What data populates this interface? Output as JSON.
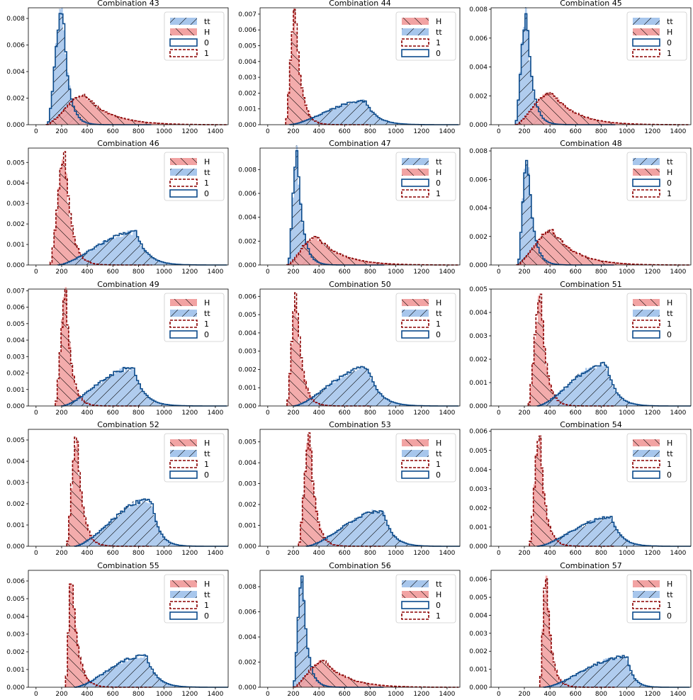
{
  "figure": {
    "colors": {
      "blue_fill": "#a7c6ec",
      "red_fill": "#f2a3a3",
      "blue_line": "#0b4a8b",
      "red_line": "#8b0000"
    }
  },
  "chart_data": [
    {
      "type": "histogram",
      "title": "Combination 43",
      "ylim": [
        0,
        0.0088
      ],
      "yticks": [
        "0.000",
        "0.002",
        "0.004",
        "0.006",
        "0.008"
      ],
      "ytick_values": [
        0,
        0.002,
        0.004,
        0.006,
        0.008
      ],
      "xticks": [
        "0",
        "200",
        "400",
        "600",
        "800",
        "1000",
        "1200",
        "1400"
      ],
      "xlim": [
        -60,
        1500
      ],
      "legend": {
        "fill_labels": [
          "tt",
          "H"
        ],
        "step_labels": [
          "0",
          "1"
        ],
        "placement": "upper right"
      },
      "series": [
        {
          "color": "blue",
          "peak_x": 210,
          "peak_y": 0.0087,
          "start_x": 90,
          "end_x": 900,
          "tail": 0.5
        },
        {
          "color": "red",
          "peak_x": 380,
          "peak_y": 0.0022,
          "start_x": 80,
          "end_x": 1480,
          "tail": 1.6
        }
      ]
    },
    {
      "type": "histogram",
      "title": "Combination 44",
      "ylim": [
        0,
        0.0074
      ],
      "yticks": [
        "0.000",
        "0.001",
        "0.002",
        "0.003",
        "0.004",
        "0.005",
        "0.006",
        "0.007"
      ],
      "ytick_values": [
        0,
        0.001,
        0.002,
        0.003,
        0.004,
        0.005,
        0.006,
        0.007
      ],
      "xticks": [
        "0",
        "200",
        "400",
        "600",
        "800",
        "1000",
        "1200",
        "1400"
      ],
      "xlim": [
        -60,
        1500
      ],
      "legend": {
        "fill_labels": [
          "H",
          "tt"
        ],
        "step_labels": [
          "1",
          "0"
        ],
        "placement": "upper right"
      },
      "series": [
        {
          "color": "red",
          "peak_x": 215,
          "peak_y": 0.0072,
          "start_x": 140,
          "end_x": 800,
          "tail": 0.6
        },
        {
          "color": "blue",
          "peak_x": 760,
          "peak_y": 0.0015,
          "start_x": 170,
          "end_x": 1490,
          "tail": 1.0
        }
      ]
    },
    {
      "type": "histogram",
      "title": "Combination 45",
      "ylim": [
        0,
        0.0081
      ],
      "yticks": [
        "0.000",
        "0.002",
        "0.004",
        "0.006",
        "0.008"
      ],
      "ytick_values": [
        0,
        0.002,
        0.004,
        0.006,
        0.008
      ],
      "xticks": [
        "0",
        "200",
        "400",
        "600",
        "800",
        "1000",
        "1200",
        "1400"
      ],
      "xlim": [
        -60,
        1500
      ],
      "legend": {
        "fill_labels": [
          "tt",
          "H"
        ],
        "step_labels": [
          "0",
          "1"
        ],
        "placement": "upper right"
      },
      "series": [
        {
          "color": "blue",
          "peak_x": 220,
          "peak_y": 0.0077,
          "start_x": 130,
          "end_x": 900,
          "tail": 0.5
        },
        {
          "color": "red",
          "peak_x": 420,
          "peak_y": 0.0022,
          "start_x": 130,
          "end_x": 1480,
          "tail": 1.5
        }
      ]
    },
    {
      "type": "histogram",
      "title": "Combination 46",
      "ylim": [
        0,
        0.0057
      ],
      "yticks": [
        "0.000",
        "0.001",
        "0.002",
        "0.003",
        "0.004",
        "0.005"
      ],
      "ytick_values": [
        0,
        0.001,
        0.002,
        0.003,
        0.004,
        0.005
      ],
      "xticks": [
        "0",
        "200",
        "400",
        "600",
        "800",
        "1000",
        "1200",
        "1400"
      ],
      "xlim": [
        -60,
        1500
      ],
      "legend": {
        "fill_labels": [
          "H",
          "tt"
        ],
        "step_labels": [
          "1",
          "0"
        ],
        "placement": "upper right"
      },
      "series": [
        {
          "color": "red",
          "peak_x": 225,
          "peak_y": 0.0054,
          "start_x": 110,
          "end_x": 900,
          "tail": 0.6
        },
        {
          "color": "blue",
          "peak_x": 780,
          "peak_y": 0.0016,
          "start_x": 170,
          "end_x": 1490,
          "tail": 1.0
        }
      ]
    },
    {
      "type": "histogram",
      "title": "Combination 47",
      "ylim": [
        0,
        0.0098
      ],
      "yticks": [
        "0.000",
        "0.002",
        "0.004",
        "0.006",
        "0.008"
      ],
      "ytick_values": [
        0,
        0.002,
        0.004,
        0.006,
        0.008
      ],
      "xticks": [
        "0",
        "200",
        "400",
        "600",
        "800",
        "1000",
        "1200",
        "1400"
      ],
      "xlim": [
        -60,
        1500
      ],
      "legend": {
        "fill_labels": [
          "tt",
          "H"
        ],
        "step_labels": [
          "0",
          "1"
        ],
        "placement": "upper right"
      },
      "series": [
        {
          "color": "blue",
          "peak_x": 230,
          "peak_y": 0.0095,
          "start_x": 160,
          "end_x": 900,
          "tail": 0.5
        },
        {
          "color": "red",
          "peak_x": 380,
          "peak_y": 0.0024,
          "start_x": 150,
          "end_x": 1480,
          "tail": 1.5
        }
      ]
    },
    {
      "type": "histogram",
      "title": "Combination 48",
      "ylim": [
        0,
        0.0082
      ],
      "yticks": [
        "0.000",
        "0.002",
        "0.004",
        "0.006",
        "0.008"
      ],
      "ytick_values": [
        0,
        0.002,
        0.004,
        0.006,
        0.008
      ],
      "xticks": [
        "0",
        "200",
        "400",
        "600",
        "800",
        "1000",
        "1200",
        "1400"
      ],
      "xlim": [
        -60,
        1500
      ],
      "legend": {
        "fill_labels": [
          "tt",
          "H"
        ],
        "step_labels": [
          "0",
          "1"
        ],
        "placement": "upper right"
      },
      "series": [
        {
          "color": "blue",
          "peak_x": 225,
          "peak_y": 0.0078,
          "start_x": 150,
          "end_x": 900,
          "tail": 0.5
        },
        {
          "color": "red",
          "peak_x": 420,
          "peak_y": 0.0024,
          "start_x": 140,
          "end_x": 1480,
          "tail": 1.5
        }
      ]
    },
    {
      "type": "histogram",
      "title": "Combination 49",
      "ylim": [
        0,
        0.0071
      ],
      "yticks": [
        "0.000",
        "0.001",
        "0.002",
        "0.003",
        "0.004",
        "0.005",
        "0.006",
        "0.007"
      ],
      "ytick_values": [
        0,
        0.001,
        0.002,
        0.003,
        0.004,
        0.005,
        0.006,
        0.007
      ],
      "xticks": [
        "0",
        "200",
        "400",
        "600",
        "800",
        "1000",
        "1200",
        "1400"
      ],
      "xlim": [
        -60,
        1500
      ],
      "legend": {
        "fill_labels": [
          "H",
          "tt"
        ],
        "step_labels": [
          "1",
          "0"
        ],
        "placement": "upper right"
      },
      "series": [
        {
          "color": "red",
          "peak_x": 235,
          "peak_y": 0.0068,
          "start_x": 150,
          "end_x": 800,
          "tail": 0.6
        },
        {
          "color": "blue",
          "peak_x": 760,
          "peak_y": 0.0023,
          "start_x": 200,
          "end_x": 1490,
          "tail": 0.9
        }
      ]
    },
    {
      "type": "histogram",
      "title": "Combination 50",
      "ylim": [
        0,
        0.0064
      ],
      "yticks": [
        "0.000",
        "0.001",
        "0.002",
        "0.003",
        "0.004",
        "0.005",
        "0.006"
      ],
      "ytick_values": [
        0,
        0.001,
        0.002,
        0.003,
        0.004,
        0.005,
        0.006
      ],
      "xticks": [
        "0",
        "200",
        "400",
        "600",
        "800",
        "1000",
        "1200",
        "1400"
      ],
      "xlim": [
        -60,
        1500
      ],
      "legend": {
        "fill_labels": [
          "H",
          "tt"
        ],
        "step_labels": [
          "1",
          "0"
        ],
        "placement": "upper right"
      },
      "series": [
        {
          "color": "red",
          "peak_x": 225,
          "peak_y": 0.0061,
          "start_x": 150,
          "end_x": 800,
          "tail": 0.6
        },
        {
          "color": "blue",
          "peak_x": 780,
          "peak_y": 0.0021,
          "start_x": 200,
          "end_x": 1490,
          "tail": 1.0
        }
      ]
    },
    {
      "type": "histogram",
      "title": "Combination 51",
      "ylim": [
        0,
        0.005
      ],
      "yticks": [
        "0.000",
        "0.001",
        "0.002",
        "0.003",
        "0.004",
        "0.005"
      ],
      "ytick_values": [
        0,
        0.001,
        0.002,
        0.003,
        0.004,
        0.005
      ],
      "xticks": [
        "0",
        "200",
        "400",
        "600",
        "800",
        "1000",
        "1200",
        "1400"
      ],
      "xlim": [
        -60,
        1500
      ],
      "legend": {
        "fill_labels": [
          "H",
          "tt"
        ],
        "step_labels": [
          "1",
          "0"
        ],
        "placement": "upper right"
      },
      "series": [
        {
          "color": "red",
          "peak_x": 330,
          "peak_y": 0.0048,
          "start_x": 230,
          "end_x": 900,
          "tail": 0.6
        },
        {
          "color": "blue",
          "peak_x": 840,
          "peak_y": 0.0018,
          "start_x": 300,
          "end_x": 1490,
          "tail": 0.9
        }
      ]
    },
    {
      "type": "histogram",
      "title": "Combination 52",
      "ylim": [
        0,
        0.0055
      ],
      "yticks": [
        "0.000",
        "0.001",
        "0.002",
        "0.003",
        "0.004",
        "0.005"
      ],
      "ytick_values": [
        0,
        0.001,
        0.002,
        0.003,
        0.004,
        0.005
      ],
      "xticks": [
        "0",
        "200",
        "400",
        "600",
        "800",
        "1000",
        "1200",
        "1400"
      ],
      "xlim": [
        -60,
        1500
      ],
      "legend": {
        "fill_labels": [
          "H",
          "tt"
        ],
        "step_labels": [
          "1",
          "0"
        ],
        "placement": "upper right"
      },
      "series": [
        {
          "color": "red",
          "peak_x": 320,
          "peak_y": 0.0053,
          "start_x": 240,
          "end_x": 900,
          "tail": 0.6
        },
        {
          "color": "blue",
          "peak_x": 900,
          "peak_y": 0.0022,
          "start_x": 300,
          "end_x": 1490,
          "tail": 0.8
        }
      ]
    },
    {
      "type": "histogram",
      "title": "Combination 53",
      "ylim": [
        0,
        0.0056
      ],
      "yticks": [
        "0.000",
        "0.001",
        "0.002",
        "0.003",
        "0.004",
        "0.005"
      ],
      "ytick_values": [
        0,
        0.001,
        0.002,
        0.003,
        0.004,
        0.005
      ],
      "xticks": [
        "0",
        "200",
        "400",
        "600",
        "800",
        "1000",
        "1200",
        "1400"
      ],
      "xlim": [
        -60,
        1500
      ],
      "legend": {
        "fill_labels": [
          "H",
          "tt"
        ],
        "step_labels": [
          "1",
          "0"
        ],
        "placement": "upper right"
      },
      "series": [
        {
          "color": "red",
          "peak_x": 330,
          "peak_y": 0.0053,
          "start_x": 240,
          "end_x": 900,
          "tail": 0.6
        },
        {
          "color": "blue",
          "peak_x": 900,
          "peak_y": 0.0017,
          "start_x": 300,
          "end_x": 1490,
          "tail": 1.0
        }
      ]
    },
    {
      "type": "histogram",
      "title": "Combination 54",
      "ylim": [
        0,
        0.0061
      ],
      "yticks": [
        "0.000",
        "0.001",
        "0.002",
        "0.003",
        "0.004",
        "0.005",
        "0.006"
      ],
      "ytick_values": [
        0,
        0.001,
        0.002,
        0.003,
        0.004,
        0.005,
        0.006
      ],
      "xticks": [
        "0",
        "200",
        "400",
        "600",
        "800",
        "1000",
        "1200",
        "1400"
      ],
      "xlim": [
        -60,
        1500
      ],
      "legend": {
        "fill_labels": [
          "H",
          "tt"
        ],
        "step_labels": [
          "1",
          "0"
        ],
        "placement": "upper right"
      },
      "series": [
        {
          "color": "red",
          "peak_x": 320,
          "peak_y": 0.0058,
          "start_x": 240,
          "end_x": 900,
          "tail": 0.6
        },
        {
          "color": "blue",
          "peak_x": 880,
          "peak_y": 0.0015,
          "start_x": 300,
          "end_x": 1490,
          "tail": 1.0
        }
      ]
    },
    {
      "type": "histogram",
      "title": "Combination 55",
      "ylim": [
        0,
        0.0066
      ],
      "yticks": [
        "0.000",
        "0.001",
        "0.002",
        "0.003",
        "0.004",
        "0.005",
        "0.006"
      ],
      "ytick_values": [
        0,
        0.001,
        0.002,
        0.003,
        0.004,
        0.005,
        0.006
      ],
      "xticks": [
        "0",
        "200",
        "400",
        "600",
        "800",
        "1000",
        "1200",
        "1400"
      ],
      "xlim": [
        -60,
        1500
      ],
      "legend": {
        "fill_labels": [
          "H",
          "tt"
        ],
        "step_labels": [
          "1",
          "0"
        ],
        "placement": "upper right"
      },
      "series": [
        {
          "color": "red",
          "peak_x": 280,
          "peak_y": 0.0063,
          "start_x": 230,
          "end_x": 900,
          "tail": 0.6
        },
        {
          "color": "blue",
          "peak_x": 860,
          "peak_y": 0.0018,
          "start_x": 300,
          "end_x": 1490,
          "tail": 1.0
        }
      ]
    },
    {
      "type": "histogram",
      "title": "Combination 56",
      "ylim": [
        0,
        0.0093
      ],
      "yticks": [
        "0.000",
        "0.002",
        "0.004",
        "0.006",
        "0.008"
      ],
      "ytick_values": [
        0,
        0.002,
        0.004,
        0.006,
        0.008
      ],
      "xticks": [
        "0",
        "200",
        "400",
        "600",
        "800",
        "1000",
        "1200",
        "1400"
      ],
      "xlim": [
        -60,
        1500
      ],
      "legend": {
        "fill_labels": [
          "tt",
          "H"
        ],
        "step_labels": [
          "0",
          "1"
        ],
        "placement": "upper right"
      },
      "series": [
        {
          "color": "blue",
          "peak_x": 270,
          "peak_y": 0.009,
          "start_x": 200,
          "end_x": 900,
          "tail": 0.5
        },
        {
          "color": "red",
          "peak_x": 440,
          "peak_y": 0.0021,
          "start_x": 200,
          "end_x": 1480,
          "tail": 1.5
        }
      ]
    },
    {
      "type": "histogram",
      "title": "Combination 57",
      "ylim": [
        0,
        0.0065
      ],
      "yticks": [
        "0.000",
        "0.001",
        "0.002",
        "0.003",
        "0.004",
        "0.005",
        "0.006"
      ],
      "ytick_values": [
        0,
        0.001,
        0.002,
        0.003,
        0.004,
        0.005,
        0.006
      ],
      "xticks": [
        "0",
        "200",
        "400",
        "600",
        "800",
        "1000",
        "1200",
        "1400"
      ],
      "xlim": [
        -60,
        1500
      ],
      "legend": {
        "fill_labels": [
          "H",
          "tt"
        ],
        "step_labels": [
          "1",
          "0"
        ],
        "placement": "upper right"
      },
      "series": [
        {
          "color": "red",
          "peak_x": 370,
          "peak_y": 0.0062,
          "start_x": 320,
          "end_x": 900,
          "tail": 0.6
        },
        {
          "color": "blue",
          "peak_x": 1000,
          "peak_y": 0.0017,
          "start_x": 350,
          "end_x": 1490,
          "tail": 0.8
        }
      ]
    }
  ]
}
